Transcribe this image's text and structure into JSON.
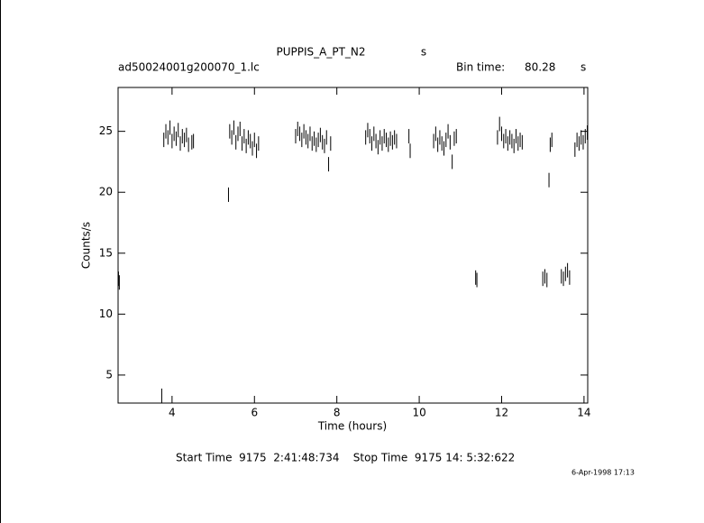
{
  "chart_data": {
    "type": "scatter",
    "title": "PUPPIS_A_PT_N2",
    "title_suffix": "s",
    "subtitle": "ad50024001g200070_1.lc",
    "bin_time_label": "Bin time:",
    "bin_time": 80.28,
    "bin_time_unit": "s",
    "x_label": "Time (hours)",
    "y_label": "Counts/s",
    "footer": "Start Time  9175  2:41:48:734    Stop Time  9175 14: 5:32:622",
    "date": "6-Apr-1998 17:13",
    "color": "#000000",
    "xlim": [
      2.69,
      14.09
    ],
    "ylim": [
      2.7,
      28.6
    ],
    "xticks": [
      4,
      6,
      8,
      10,
      12,
      14
    ],
    "yticks": [
      5,
      10,
      15,
      20,
      25
    ],
    "grid": false,
    "x": [
      2.7,
      2.72,
      3.75,
      3.8,
      3.85,
      3.9,
      3.95,
      4.0,
      4.05,
      4.1,
      4.15,
      4.2,
      4.25,
      4.3,
      4.35,
      4.4,
      4.48,
      4.52,
      5.37,
      5.4,
      5.45,
      5.5,
      5.55,
      5.6,
      5.65,
      5.7,
      5.75,
      5.8,
      5.85,
      5.9,
      5.95,
      6.0,
      6.05,
      6.1,
      7.0,
      7.05,
      7.1,
      7.15,
      7.2,
      7.25,
      7.3,
      7.35,
      7.4,
      7.45,
      7.5,
      7.55,
      7.6,
      7.65,
      7.7,
      7.75,
      7.8,
      7.85,
      8.7,
      8.75,
      8.8,
      8.85,
      8.9,
      8.95,
      9.0,
      9.05,
      9.1,
      9.15,
      9.2,
      9.25,
      9.3,
      9.35,
      9.4,
      9.45,
      9.75,
      9.78,
      10.35,
      10.4,
      10.45,
      10.5,
      10.55,
      10.6,
      10.65,
      10.7,
      10.75,
      10.8,
      10.85,
      10.9,
      11.37,
      11.4,
      11.9,
      11.95,
      12.0,
      12.05,
      12.1,
      12.15,
      12.2,
      12.25,
      12.3,
      12.35,
      12.4,
      12.45,
      12.5,
      13.0,
      13.05,
      13.1,
      13.15,
      13.18,
      13.22,
      13.45,
      13.5,
      13.55,
      13.6,
      13.65,
      13.78,
      13.83,
      13.88,
      13.93,
      13.98,
      14.03,
      14.08
    ],
    "y": [
      12.9,
      12.6,
      3.3,
      24.3,
      25.0,
      24.5,
      25.3,
      24.2,
      24.8,
      24.4,
      25.1,
      24.0,
      24.6,
      24.3,
      24.7,
      23.9,
      24.1,
      24.2,
      19.8,
      25.0,
      24.5,
      25.3,
      24.1,
      24.8,
      25.2,
      24.0,
      24.6,
      23.8,
      24.5,
      24.2,
      23.6,
      24.3,
      23.4,
      24.0,
      24.6,
      25.2,
      24.8,
      24.3,
      25.0,
      24.5,
      24.2,
      24.8,
      24.0,
      24.4,
      23.9,
      24.3,
      24.7,
      24.1,
      23.8,
      24.5,
      22.3,
      24.0,
      24.5,
      25.1,
      24.6,
      24.0,
      24.8,
      24.2,
      23.7,
      24.5,
      24.0,
      24.6,
      24.3,
      23.9,
      24.4,
      24.1,
      24.5,
      24.2,
      24.6,
      23.4,
      24.2,
      24.8,
      23.9,
      24.5,
      24.0,
      23.6,
      24.3,
      25.0,
      24.1,
      22.5,
      24.4,
      24.6,
      13.0,
      12.8,
      24.5,
      25.6,
      24.8,
      24.2,
      24.6,
      24.0,
      24.5,
      24.2,
      23.8,
      24.6,
      24.0,
      24.3,
      24.1,
      12.9,
      13.1,
      12.8,
      21.0,
      23.9,
      24.3,
      13.1,
      12.9,
      13.3,
      13.6,
      13.0,
      23.5,
      24.3,
      24.0,
      24.5,
      24.1,
      24.6,
      24.9
    ]
  }
}
